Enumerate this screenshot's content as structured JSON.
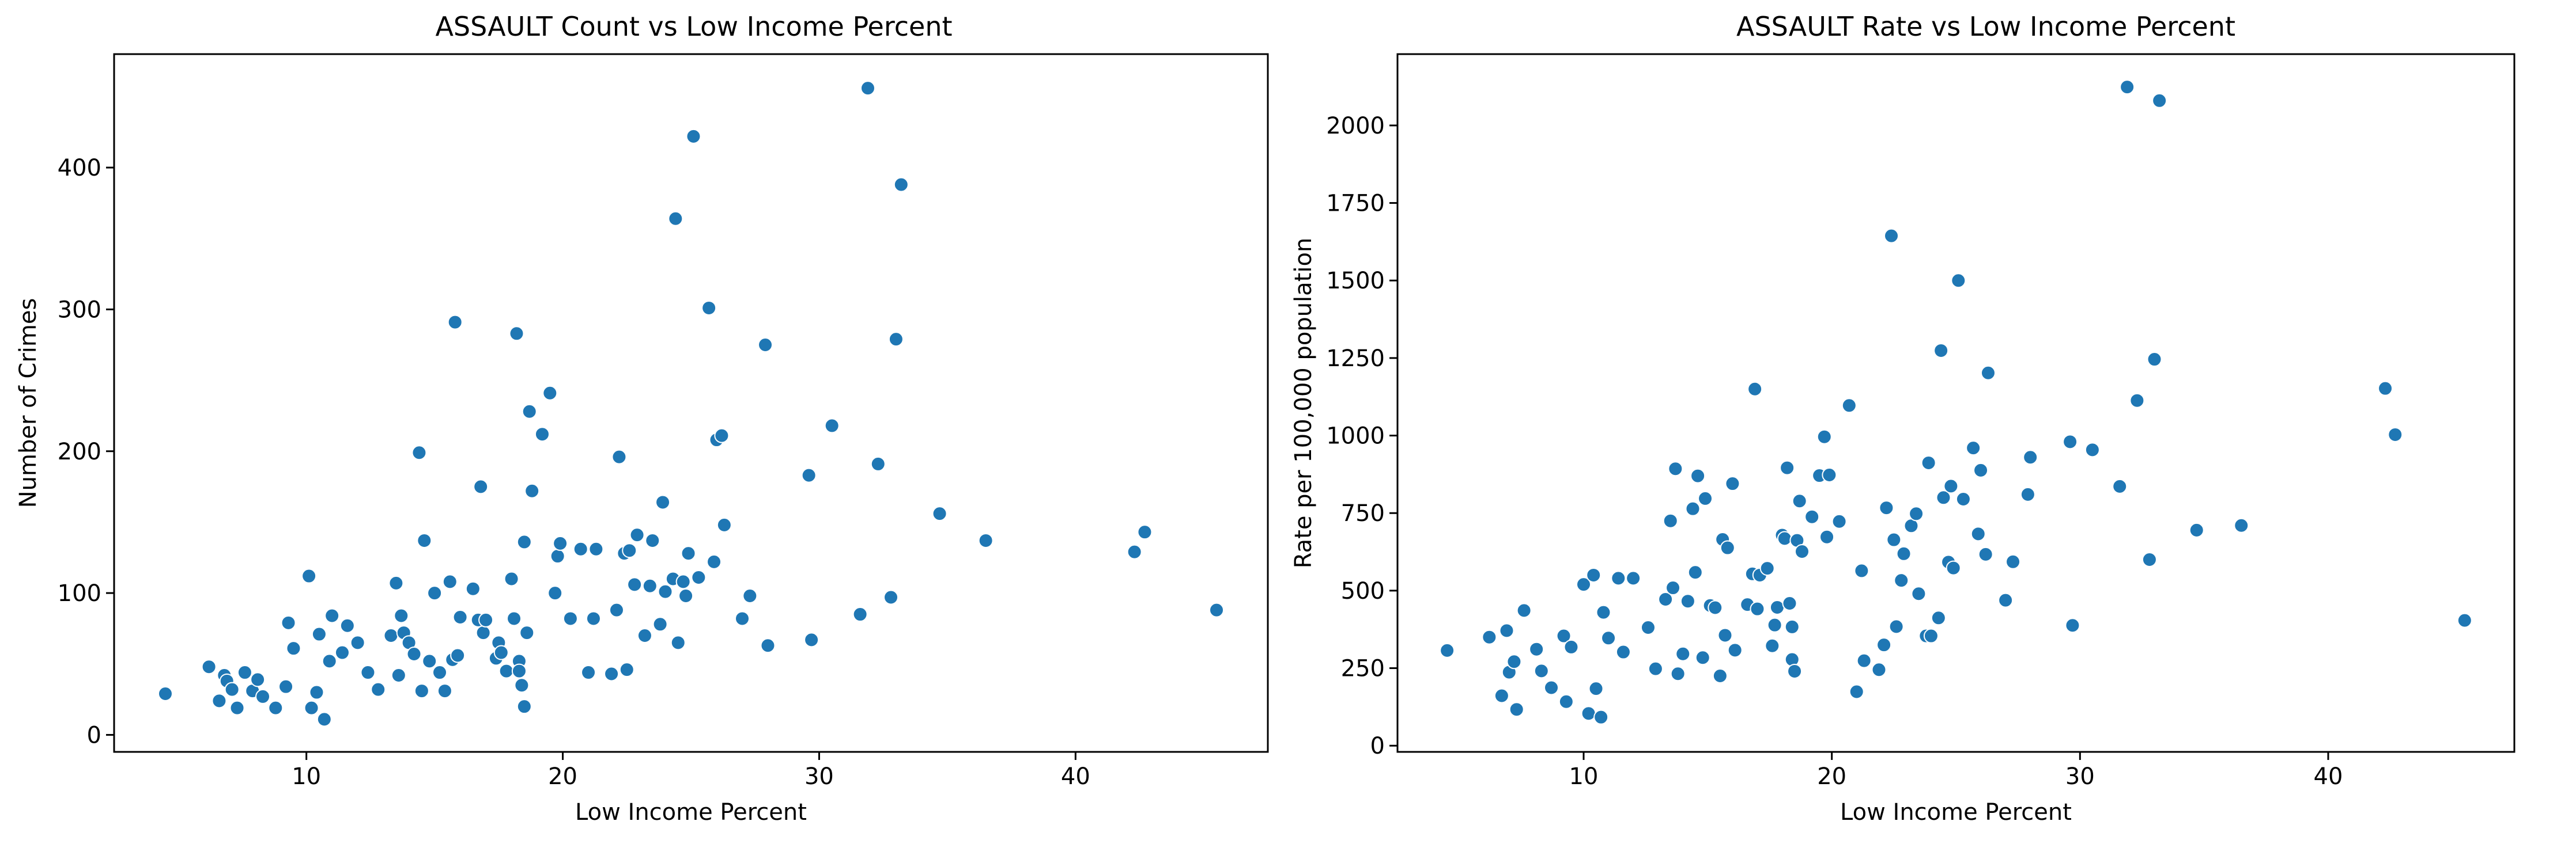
{
  "chart_data": [
    {
      "type": "scatter",
      "title": "ASSAULT Count vs Low Income Percent",
      "xlabel": "Low Income Percent",
      "ylabel": "Number of Crimes",
      "xlim": [
        2.5,
        47.5
      ],
      "ylim": [
        -12,
        480
      ],
      "xticks": [
        10,
        20,
        30,
        40
      ],
      "yticks": [
        0,
        100,
        200,
        300,
        400
      ],
      "grid": false,
      "marker_color": "#1f77b4",
      "points": [
        [
          4.5,
          29
        ],
        [
          6.2,
          48
        ],
        [
          6.6,
          24
        ],
        [
          6.8,
          42
        ],
        [
          6.9,
          38
        ],
        [
          7.1,
          32
        ],
        [
          7.3,
          19
        ],
        [
          7.6,
          44
        ],
        [
          7.9,
          31
        ],
        [
          8.1,
          39
        ],
        [
          8.3,
          27
        ],
        [
          8.8,
          19
        ],
        [
          9.2,
          34
        ],
        [
          9.3,
          79
        ],
        [
          9.5,
          61
        ],
        [
          10.1,
          112
        ],
        [
          10.2,
          19
        ],
        [
          10.4,
          30
        ],
        [
          10.5,
          71
        ],
        [
          10.7,
          11
        ],
        [
          10.9,
          52
        ],
        [
          11.0,
          84
        ],
        [
          11.4,
          58
        ],
        [
          11.6,
          77
        ],
        [
          12.0,
          65
        ],
        [
          12.4,
          44
        ],
        [
          12.8,
          32
        ],
        [
          13.3,
          70
        ],
        [
          13.5,
          107
        ],
        [
          13.6,
          42
        ],
        [
          13.7,
          84
        ],
        [
          13.8,
          72
        ],
        [
          14.0,
          65
        ],
        [
          14.2,
          57
        ],
        [
          14.4,
          199
        ],
        [
          14.5,
          31
        ],
        [
          14.6,
          137
        ],
        [
          14.8,
          52
        ],
        [
          15.0,
          100
        ],
        [
          15.2,
          44
        ],
        [
          15.4,
          31
        ],
        [
          15.6,
          108
        ],
        [
          15.7,
          53
        ],
        [
          15.8,
          291
        ],
        [
          15.9,
          56
        ],
        [
          16.0,
          83
        ],
        [
          16.5,
          103
        ],
        [
          16.7,
          81
        ],
        [
          16.8,
          175
        ],
        [
          16.9,
          72
        ],
        [
          17.0,
          81
        ],
        [
          17.4,
          54
        ],
        [
          17.5,
          65
        ],
        [
          17.6,
          58
        ],
        [
          17.8,
          45
        ],
        [
          18.0,
          110
        ],
        [
          18.1,
          82
        ],
        [
          18.2,
          283
        ],
        [
          18.3,
          52
        ],
        [
          18.3,
          45
        ],
        [
          18.4,
          35
        ],
        [
          18.5,
          20
        ],
        [
          18.5,
          136
        ],
        [
          18.6,
          72
        ],
        [
          18.7,
          228
        ],
        [
          18.8,
          172
        ],
        [
          19.2,
          212
        ],
        [
          19.5,
          241
        ],
        [
          19.7,
          100
        ],
        [
          19.8,
          126
        ],
        [
          19.9,
          135
        ],
        [
          20.3,
          82
        ],
        [
          20.7,
          131
        ],
        [
          21.0,
          44
        ],
        [
          21.2,
          82
        ],
        [
          21.3,
          131
        ],
        [
          21.9,
          43
        ],
        [
          22.1,
          88
        ],
        [
          22.2,
          196
        ],
        [
          22.4,
          128
        ],
        [
          22.5,
          46
        ],
        [
          22.6,
          130
        ],
        [
          22.8,
          106
        ],
        [
          22.9,
          141
        ],
        [
          23.2,
          70
        ],
        [
          23.4,
          105
        ],
        [
          23.5,
          137
        ],
        [
          23.8,
          78
        ],
        [
          23.9,
          164
        ],
        [
          24.0,
          101
        ],
        [
          24.3,
          110
        ],
        [
          24.4,
          364
        ],
        [
          24.5,
          65
        ],
        [
          24.7,
          108
        ],
        [
          24.8,
          98
        ],
        [
          24.9,
          128
        ],
        [
          25.1,
          422
        ],
        [
          25.3,
          111
        ],
        [
          25.7,
          301
        ],
        [
          25.9,
          122
        ],
        [
          26.0,
          208
        ],
        [
          26.2,
          211
        ],
        [
          26.3,
          148
        ],
        [
          27.0,
          82
        ],
        [
          27.3,
          98
        ],
        [
          27.9,
          275
        ],
        [
          28.0,
          63
        ],
        [
          29.6,
          183
        ],
        [
          29.7,
          67
        ],
        [
          30.5,
          218
        ],
        [
          31.6,
          85
        ],
        [
          31.9,
          456
        ],
        [
          32.3,
          191
        ],
        [
          32.8,
          97
        ],
        [
          33.0,
          279
        ],
        [
          33.2,
          388
        ],
        [
          34.7,
          156
        ],
        [
          36.5,
          137
        ],
        [
          42.3,
          129
        ],
        [
          42.7,
          143
        ],
        [
          45.5,
          88
        ]
      ]
    },
    {
      "type": "scatter",
      "title": "ASSAULT Rate vs Low Income Percent",
      "xlabel": "Low Income Percent",
      "ylabel": "Rate per 100,000 population",
      "xlim": [
        2.5,
        47.5
      ],
      "ylim": [
        -20,
        2230
      ],
      "xticks": [
        10,
        20,
        30,
        40
      ],
      "yticks": [
        0,
        250,
        500,
        750,
        1000,
        1250,
        1500,
        1750,
        2000
      ],
      "grid": false,
      "marker_color": "#1f77b4",
      "points": [
        [
          4.5,
          307
        ],
        [
          6.2,
          350
        ],
        [
          6.7,
          161
        ],
        [
          6.9,
          371
        ],
        [
          7.0,
          237
        ],
        [
          7.2,
          271
        ],
        [
          7.3,
          117
        ],
        [
          7.6,
          436
        ],
        [
          8.1,
          311
        ],
        [
          8.3,
          241
        ],
        [
          8.7,
          187
        ],
        [
          9.2,
          354
        ],
        [
          9.3,
          142
        ],
        [
          9.5,
          318
        ],
        [
          10.0,
          520
        ],
        [
          10.2,
          104
        ],
        [
          10.4,
          550
        ],
        [
          10.5,
          184
        ],
        [
          10.7,
          92
        ],
        [
          10.8,
          430
        ],
        [
          11.0,
          347
        ],
        [
          11.4,
          540
        ],
        [
          11.6,
          302
        ],
        [
          12.0,
          540
        ],
        [
          12.6,
          381
        ],
        [
          12.9,
          248
        ],
        [
          13.3,
          472
        ],
        [
          13.5,
          725
        ],
        [
          13.6,
          509
        ],
        [
          13.7,
          893
        ],
        [
          13.8,
          232
        ],
        [
          14.0,
          296
        ],
        [
          14.2,
          466
        ],
        [
          14.4,
          764
        ],
        [
          14.5,
          559
        ],
        [
          14.6,
          870
        ],
        [
          14.8,
          284
        ],
        [
          14.9,
          797
        ],
        [
          15.1,
          452
        ],
        [
          15.3,
          445
        ],
        [
          15.5,
          225
        ],
        [
          15.6,
          665
        ],
        [
          15.7,
          356
        ],
        [
          15.8,
          638
        ],
        [
          16.0,
          845
        ],
        [
          16.1,
          308
        ],
        [
          16.6,
          455
        ],
        [
          16.8,
          554
        ],
        [
          16.9,
          1150
        ],
        [
          17.0,
          441
        ],
        [
          17.1,
          550
        ],
        [
          17.4,
          572
        ],
        [
          17.6,
          322
        ],
        [
          17.7,
          389
        ],
        [
          17.8,
          446
        ],
        [
          18.0,
          679
        ],
        [
          18.1,
          668
        ],
        [
          18.2,
          896
        ],
        [
          18.3,
          459
        ],
        [
          18.4,
          383
        ],
        [
          18.4,
          278
        ],
        [
          18.5,
          240
        ],
        [
          18.6,
          662
        ],
        [
          18.7,
          789
        ],
        [
          18.8,
          626
        ],
        [
          19.2,
          738
        ],
        [
          19.5,
          871
        ],
        [
          19.7,
          996
        ],
        [
          19.8,
          673
        ],
        [
          19.9,
          873
        ],
        [
          20.3,
          723
        ],
        [
          20.7,
          1097
        ],
        [
          21.0,
          174
        ],
        [
          21.2,
          564
        ],
        [
          21.3,
          274
        ],
        [
          21.9,
          245
        ],
        [
          22.1,
          325
        ],
        [
          22.2,
          767
        ],
        [
          22.4,
          1644
        ],
        [
          22.5,
          664
        ],
        [
          22.6,
          384
        ],
        [
          22.8,
          533
        ],
        [
          22.9,
          619
        ],
        [
          23.2,
          709
        ],
        [
          23.4,
          748
        ],
        [
          23.5,
          490
        ],
        [
          23.8,
          354
        ],
        [
          23.9,
          912
        ],
        [
          24.0,
          354
        ],
        [
          24.3,
          412
        ],
        [
          24.4,
          1274
        ],
        [
          24.5,
          800
        ],
        [
          24.7,
          592
        ],
        [
          24.8,
          837
        ],
        [
          24.9,
          573
        ],
        [
          25.1,
          1500
        ],
        [
          25.3,
          795
        ],
        [
          25.7,
          960
        ],
        [
          25.9,
          683
        ],
        [
          26.0,
          888
        ],
        [
          26.2,
          617
        ],
        [
          26.3,
          1202
        ],
        [
          27.0,
          469
        ],
        [
          27.3,
          593
        ],
        [
          27.9,
          810
        ],
        [
          28.0,
          930
        ],
        [
          29.6,
          980
        ],
        [
          29.7,
          388
        ],
        [
          30.5,
          954
        ],
        [
          31.6,
          836
        ],
        [
          31.9,
          2124
        ],
        [
          32.3,
          1113
        ],
        [
          32.8,
          600
        ],
        [
          33.0,
          1246
        ],
        [
          33.2,
          2080
        ],
        [
          34.7,
          695
        ],
        [
          36.5,
          710
        ],
        [
          42.3,
          1152
        ],
        [
          42.7,
          1003
        ],
        [
          45.5,
          404
        ]
      ]
    }
  ]
}
